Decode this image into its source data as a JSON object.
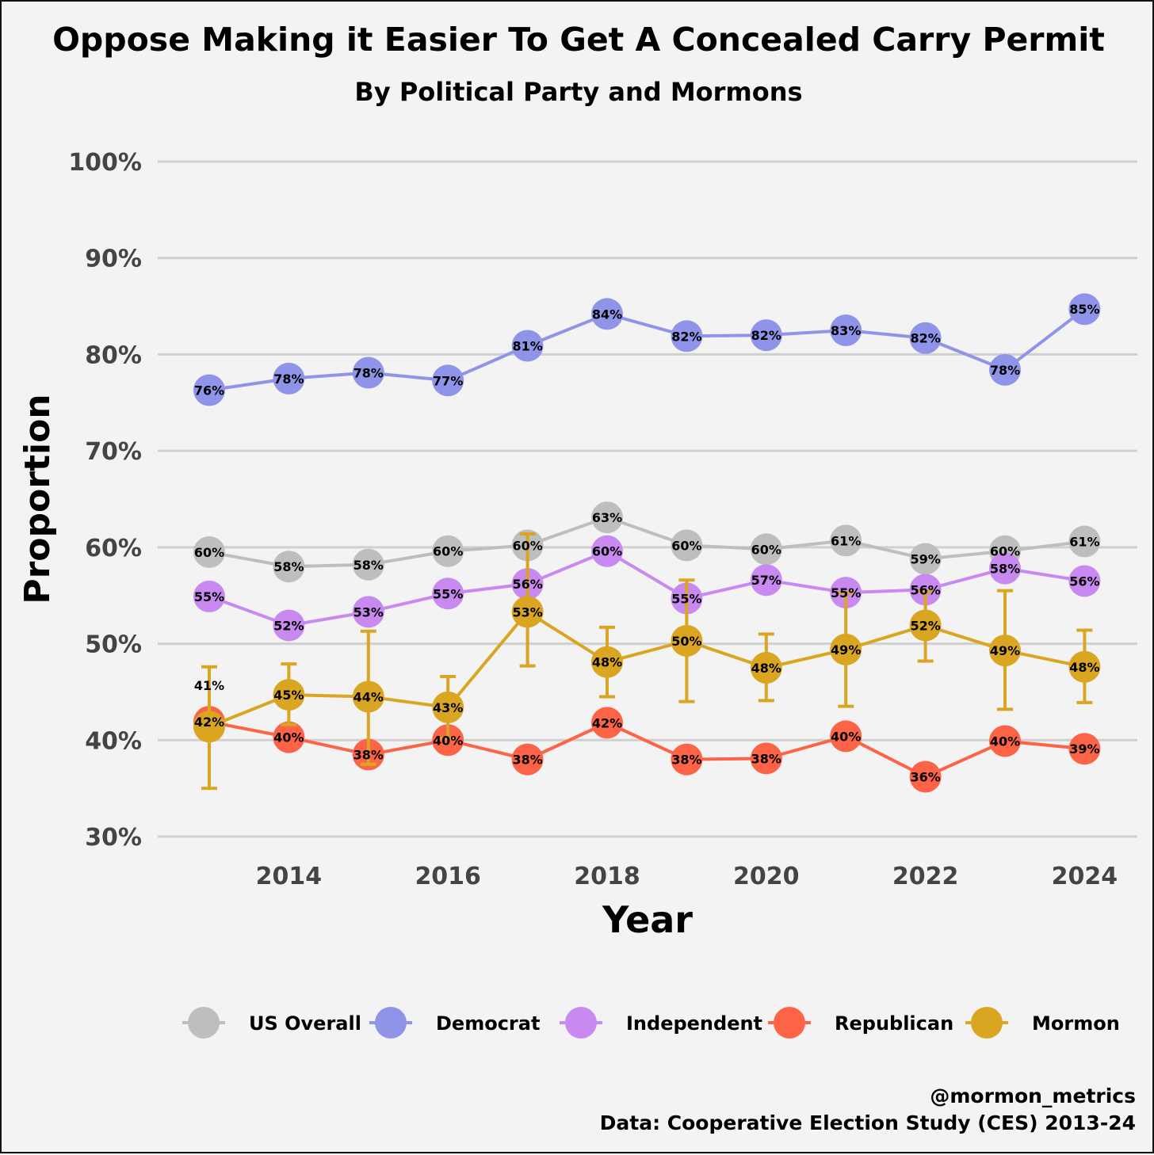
{
  "chart_data": {
    "type": "line",
    "title": "Oppose Making it Easier To Get A Concealed Carry Permit",
    "subtitle": "By Political Party and Mormons",
    "xlabel": "Year",
    "ylabel": "Proportion",
    "x": [
      2013,
      2014,
      2015,
      2016,
      2017,
      2018,
      2019,
      2020,
      2021,
      2022,
      2023,
      2024
    ],
    "xticks": [
      "2014",
      "2016",
      "2018",
      "2020",
      "2022",
      "2024"
    ],
    "xtick_values": [
      2014,
      2016,
      2018,
      2020,
      2022,
      2024
    ],
    "yticks": [
      "30%",
      "40%",
      "50%",
      "60%",
      "70%",
      "80%",
      "90%",
      "100%"
    ],
    "ytick_values": [
      30,
      40,
      50,
      60,
      70,
      80,
      90,
      100
    ],
    "ylim": [
      30,
      100
    ],
    "xlim": [
      2012.35,
      2024.65
    ],
    "grid": "horizontal",
    "legend_position": "bottom",
    "series": [
      {
        "name": "US Overall",
        "color": "#bebebe",
        "values": [
          59.5,
          58.0,
          58.2,
          59.6,
          60.2,
          63.1,
          60.2,
          59.8,
          60.7,
          58.8,
          59.6,
          60.6
        ],
        "labels": [
          "60%",
          "58%",
          "58%",
          "60%",
          "60%",
          "63%",
          "60%",
          "60%",
          "61%",
          "59%",
          "60%",
          "61%"
        ]
      },
      {
        "name": "Democrat",
        "color": "#9094e8",
        "values": [
          76.3,
          77.5,
          78.1,
          77.3,
          80.9,
          84.2,
          81.9,
          82.0,
          82.5,
          81.7,
          78.4,
          84.7
        ],
        "labels": [
          "76%",
          "78%",
          "78%",
          "77%",
          "81%",
          "84%",
          "82%",
          "82%",
          "83%",
          "82%",
          "78%",
          "85%"
        ]
      },
      {
        "name": "Independent",
        "color": "#c88af0",
        "values": [
          54.9,
          51.9,
          53.3,
          55.2,
          56.2,
          59.6,
          54.7,
          56.6,
          55.3,
          55.6,
          57.8,
          56.5
        ],
        "labels": [
          "55%",
          "52%",
          "53%",
          "55%",
          "56%",
          "60%",
          "55%",
          "57%",
          "55%",
          "56%",
          "58%",
          "56%"
        ]
      },
      {
        "name": "Republican",
        "color": "#fd6347",
        "values": [
          41.9,
          40.3,
          38.5,
          40.0,
          38.0,
          41.8,
          38.0,
          38.1,
          40.4,
          36.2,
          39.9,
          39.1
        ],
        "labels": [
          "42%",
          "40%",
          "38%",
          "40%",
          "38%",
          "42%",
          "38%",
          "38%",
          "40%",
          "36%",
          "40%",
          "39%"
        ]
      },
      {
        "name": "Mormon",
        "color": "#daa520",
        "values": [
          41.4,
          44.7,
          44.5,
          43.4,
          53.3,
          48.1,
          50.3,
          47.5,
          49.4,
          51.9,
          49.3,
          47.6
        ],
        "labels": [
          "41%",
          "45%",
          "44%",
          "43%",
          "53%",
          "48%",
          "50%",
          "48%",
          "49%",
          "52%",
          "49%",
          "48%"
        ],
        "ci_low": [
          35.0,
          41.6,
          37.5,
          40.2,
          47.7,
          44.5,
          44.0,
          44.1,
          43.5,
          48.2,
          43.2,
          43.9
        ],
        "ci_high": [
          47.6,
          47.9,
          51.3,
          46.6,
          61.4,
          51.7,
          56.6,
          51.0,
          55.3,
          55.4,
          55.5,
          51.4
        ]
      }
    ]
  },
  "caption": {
    "handle": "@mormon_metrics",
    "source": "Data: Cooperative Election Study (CES) 2013-24"
  }
}
